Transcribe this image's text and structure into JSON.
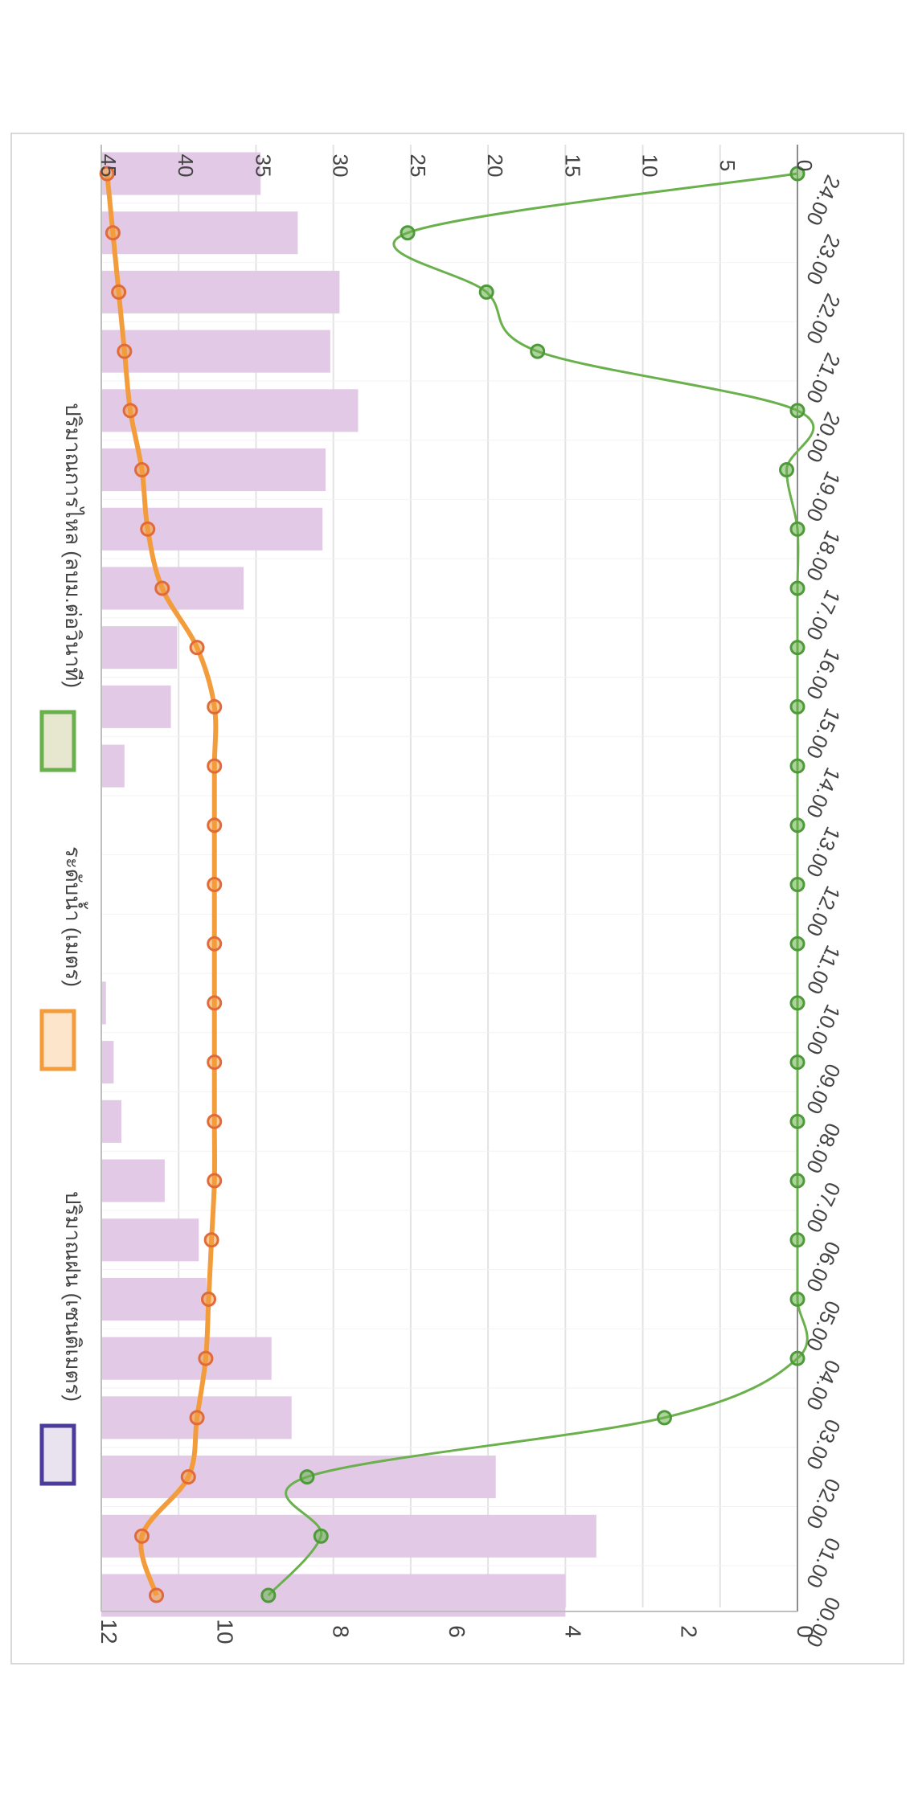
{
  "chart_data": {
    "type": "bar",
    "orientation": "rotated-90-clockwise",
    "categories": [
      "00.00",
      "01.00",
      "02.00",
      "03.00",
      "04.00",
      "05.00",
      "06.00",
      "07.00",
      "08.00",
      "09.00",
      "10.00",
      "11.00",
      "12.00",
      "13.00",
      "14.00",
      "15.00",
      "16.00",
      "17.00",
      "18.00",
      "19.00",
      "20.00",
      "21.00",
      "22.00",
      "23.00",
      "24.00"
    ],
    "series": [
      {
        "name": "ปริมาณฝน (เซนติเมตร)",
        "type": "bar",
        "axis": "right",
        "color": "#e2c9e6",
        "values": [
          30,
          32,
          25.5,
          12.3,
          11,
          6.8,
          6.3,
          4.1,
          1.3,
          0.8,
          0.3,
          0,
          0,
          0,
          1.5,
          4.5,
          4.9,
          9.2,
          14.3,
          14.5,
          16.6,
          14.8,
          15.4,
          12.7,
          10.3
        ]
      },
      {
        "name": "ระดับน้ำ (เมตร)",
        "type": "line",
        "axis": "left",
        "color": "#f39c3c",
        "marker_color": "#e06a3a",
        "values": [
          11.05,
          11.3,
          10.5,
          10.35,
          10.2,
          10.15,
          10.1,
          10.05,
          10.05,
          10.05,
          10.05,
          10.05,
          10.05,
          10.05,
          10.05,
          10.05,
          10.35,
          10.95,
          11.2,
          11.3,
          11.5,
          11.6,
          11.7,
          11.8,
          11.9
        ]
      },
      {
        "name": "ปริมาณการไหล (ลบม.ต่อวินาที)",
        "type": "line",
        "axis": "right",
        "color": "#6ab04c",
        "values": [
          34.2,
          30.8,
          31.7,
          8.6,
          0,
          0,
          0,
          0,
          0,
          0,
          0,
          0,
          0,
          0,
          0,
          0,
          0,
          0,
          0,
          0.7,
          0,
          16.8,
          20.1,
          25.2,
          0
        ]
      }
    ],
    "y_left": {
      "ticks": [
        "0",
        "2",
        "4",
        "6",
        "8",
        "10",
        "12"
      ],
      "ylim": [
        0,
        12
      ]
    },
    "y_right": {
      "ticks": [
        "0",
        "5",
        "10",
        "15",
        "20",
        "25",
        "30",
        "35",
        "40",
        "45"
      ],
      "ylim": [
        0,
        45
      ]
    },
    "grid": true,
    "legend_placement": "top",
    "legend": [
      {
        "label": "ปริมาณฝน (เซนติเมตร)",
        "swatch_fill": "#e8e3ef",
        "swatch_border": "#4b3b9a"
      },
      {
        "label": "ระดับน้ำ (เมตร)",
        "swatch_fill": "#fde5cb",
        "swatch_border": "#f39c3c"
      },
      {
        "label": "ปริมาณการไหล (ลบม.ต่อวินาที)",
        "swatch_fill": "#e7e6cf",
        "swatch_border": "#6ab04c"
      }
    ]
  }
}
